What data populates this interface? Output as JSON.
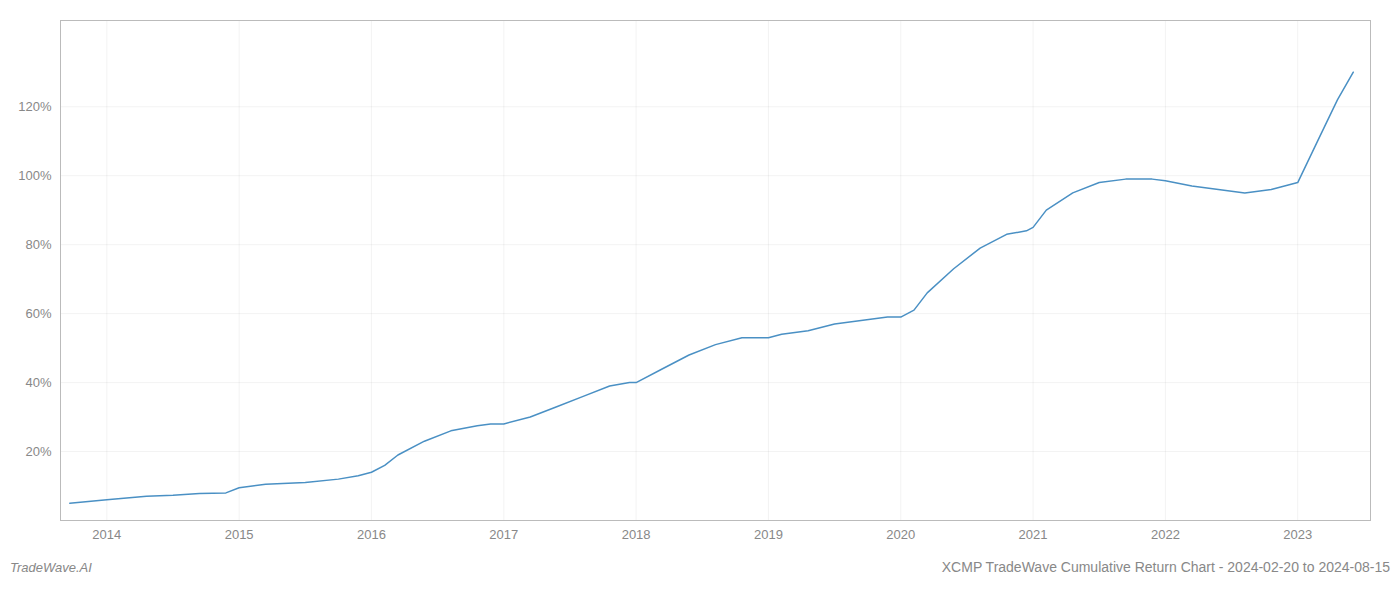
{
  "chart_data": {
    "type": "line",
    "title": "XCMP TradeWave Cumulative Return Chart - 2024-02-20 to 2024-08-15",
    "annotations": [
      "TradeWave.AI"
    ],
    "x": [
      2013.72,
      2014.0,
      2014.15,
      2014.3,
      2014.5,
      2014.7,
      2014.9,
      2015.0,
      2015.1,
      2015.2,
      2015.5,
      2015.75,
      2015.9,
      2016.0,
      2016.1,
      2016.2,
      2016.4,
      2016.6,
      2016.8,
      2016.9,
      2017.0,
      2017.2,
      2017.4,
      2017.6,
      2017.8,
      2017.95,
      2018.0,
      2018.2,
      2018.4,
      2018.6,
      2018.8,
      2018.95,
      2019.0,
      2019.1,
      2019.3,
      2019.5,
      2019.7,
      2019.9,
      2020.0,
      2020.1,
      2020.2,
      2020.4,
      2020.6,
      2020.8,
      2020.95,
      2021.0,
      2021.1,
      2021.3,
      2021.5,
      2021.7,
      2021.9,
      2022.0,
      2022.2,
      2022.4,
      2022.5,
      2022.6,
      2022.8,
      2022.9,
      2023.0,
      2023.15,
      2023.3,
      2023.42
    ],
    "values": [
      5,
      6,
      6.5,
      7,
      7.3,
      7.8,
      8,
      9.5,
      10,
      10.5,
      11,
      12,
      13,
      14,
      16,
      19,
      23,
      26,
      27.5,
      28,
      28,
      30,
      33,
      36,
      39,
      40,
      40,
      44,
      48,
      51,
      53,
      53,
      53,
      54,
      55,
      57,
      58,
      59,
      59,
      61,
      66,
      73,
      79,
      83,
      84,
      85,
      90,
      95,
      98,
      99,
      99,
      98.5,
      97,
      96,
      95.5,
      95,
      96,
      97,
      98,
      110,
      122,
      130
    ],
    "color": "#4a90c4",
    "xlim": [
      2013.65,
      2023.55
    ],
    "xticks": [
      2014,
      2015,
      2016,
      2017,
      2018,
      2019,
      2020,
      2021,
      2022,
      2023
    ],
    "ylim": [
      0,
      145
    ],
    "yticks": [
      {
        "value": 20,
        "label": "20%"
      },
      {
        "value": 40,
        "label": "40%"
      },
      {
        "value": 60,
        "label": "60%"
      },
      {
        "value": 80,
        "label": "80%"
      },
      {
        "value": 100,
        "label": "100%"
      },
      {
        "value": 120,
        "label": "120%"
      }
    ],
    "grid": true
  }
}
